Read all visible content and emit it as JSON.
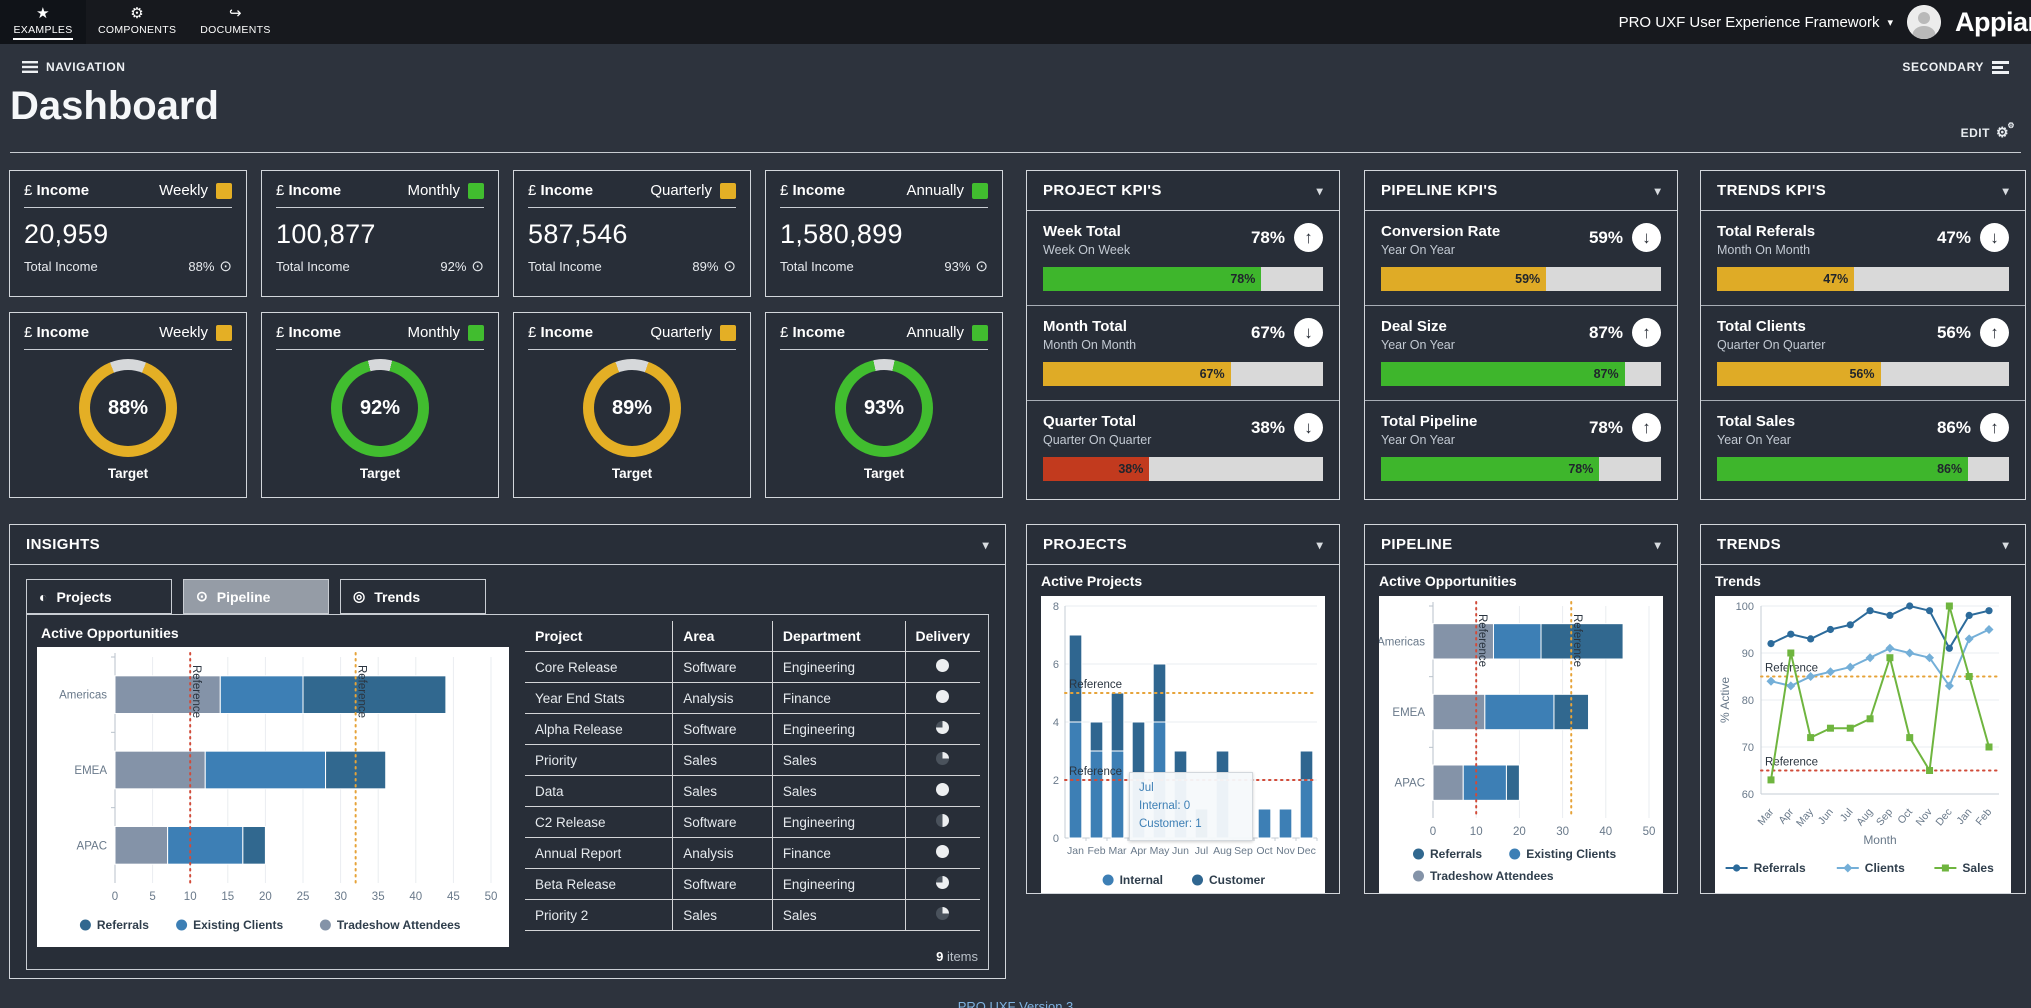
{
  "topbar": {
    "tabs": [
      {
        "label": "EXAMPLES",
        "glyph": "★",
        "icon": "star-icon",
        "active": true
      },
      {
        "label": "COMPONENTS",
        "glyph": "⚙",
        "icon": "gear-icon",
        "active": false
      },
      {
        "label": "DOCUMENTS",
        "glyph": "↪",
        "icon": "share-arrow-icon",
        "active": false
      }
    ],
    "app_menu": "PRO UXF User Experience Framework",
    "logo": "Appian"
  },
  "subheader": {
    "navigation_label": "NAVIGATION",
    "secondary_label": "SECONDARY"
  },
  "page": {
    "title": "Dashboard",
    "edit_label": "EDIT"
  },
  "income_cards": [
    {
      "currency": "£",
      "title": "Income",
      "period": "Weekly",
      "accent": "#E4AF25",
      "value": "20,959",
      "footer_label": "Total Income",
      "percent": "88%"
    },
    {
      "currency": "£",
      "title": "Income",
      "period": "Monthly",
      "accent": "#41BD2F",
      "value": "100,877",
      "footer_label": "Total Income",
      "percent": "92%"
    },
    {
      "currency": "£",
      "title": "Income",
      "period": "Quarterly",
      "accent": "#E4AF25",
      "value": "587,546",
      "footer_label": "Total Income",
      "percent": "89%"
    },
    {
      "currency": "£",
      "title": "Income",
      "period": "Annually",
      "accent": "#41BD2F",
      "value": "1,580,899",
      "footer_label": "Total Income",
      "percent": "93%"
    }
  ],
  "target_cards": [
    {
      "currency": "£",
      "title": "Income",
      "period": "Weekly",
      "accent": "#E4AF25",
      "percent": 88,
      "label": "Target"
    },
    {
      "currency": "£",
      "title": "Income",
      "period": "Monthly",
      "accent": "#41BD2F",
      "percent": 92,
      "label": "Target"
    },
    {
      "currency": "£",
      "title": "Income",
      "period": "Quarterly",
      "accent": "#E4AF25",
      "percent": 89,
      "label": "Target"
    },
    {
      "currency": "£",
      "title": "Income",
      "period": "Annually",
      "accent": "#41BD2F",
      "percent": 93,
      "label": "Target"
    }
  ],
  "kpi_panels": [
    {
      "title": "PROJECT KPI'S",
      "rows": [
        {
          "title": "Week Total",
          "subtitle": "Week On Week",
          "percent": 78,
          "direction": "up",
          "color": "#3EB62C"
        },
        {
          "title": "Month Total",
          "subtitle": "Month On Month",
          "percent": 67,
          "direction": "down",
          "color": "#DFAB26"
        },
        {
          "title": "Quarter Total",
          "subtitle": "Quarter On Quarter",
          "percent": 38,
          "direction": "down",
          "color": "#C23A1E"
        }
      ]
    },
    {
      "title": "PIPELINE KPI'S",
      "rows": [
        {
          "title": "Conversion Rate",
          "subtitle": "Year On Year",
          "percent": 59,
          "direction": "down",
          "color": "#DFAB26"
        },
        {
          "title": "Deal Size",
          "subtitle": "Year On Year",
          "percent": 87,
          "direction": "up",
          "color": "#3EB62C"
        },
        {
          "title": "Total Pipeline",
          "subtitle": "Year On Year",
          "percent": 78,
          "direction": "up",
          "color": "#3EB62C"
        }
      ]
    },
    {
      "title": "TRENDS KPI'S",
      "rows": [
        {
          "title": "Total Referals",
          "subtitle": "Month On Month",
          "percent": 47,
          "direction": "down",
          "color": "#DFAB26"
        },
        {
          "title": "Total Clients",
          "subtitle": "Quarter On Quarter",
          "percent": 56,
          "direction": "up",
          "color": "#DFAB26"
        },
        {
          "title": "Total Sales",
          "subtitle": "Year On Year",
          "percent": 86,
          "direction": "up",
          "color": "#3EB62C"
        }
      ]
    }
  ],
  "insights": {
    "title": "INSIGHTS",
    "tabs": [
      {
        "label": "Projects",
        "glyph": "◐",
        "icon": "half-circle-icon",
        "active": false
      },
      {
        "label": "Pipeline",
        "glyph": "⊙",
        "icon": "circled-dot-icon",
        "active": true
      },
      {
        "label": "Trends",
        "glyph": "◎",
        "icon": "bullseye-icon",
        "active": false
      }
    ],
    "chart_title": "Active Opportunities",
    "table": {
      "columns": [
        "Project",
        "Area",
        "Department",
        "Delivery"
      ],
      "rows": [
        {
          "project": "Core Release",
          "area": "Software",
          "department": "Engineering",
          "delivery": 1
        },
        {
          "project": "Year End Stats",
          "area": "Analysis",
          "department": "Finance",
          "delivery": 1
        },
        {
          "project": "Alpha Release",
          "area": "Software",
          "department": "Engineering",
          "delivery": 0.75
        },
        {
          "project": "Priority",
          "area": "Sales",
          "department": "Sales",
          "delivery": 0.25
        },
        {
          "project": "Data",
          "area": "Sales",
          "department": "Sales",
          "delivery": 1
        },
        {
          "project": "C2 Release",
          "area": "Software",
          "department": "Engineering",
          "delivery": 0.5
        },
        {
          "project": "Annual Report",
          "area": "Analysis",
          "department": "Finance",
          "delivery": 1
        },
        {
          "project": "Beta Release",
          "area": "Software",
          "department": "Engineering",
          "delivery": 0.75
        },
        {
          "project": "Priority 2",
          "area": "Sales",
          "department": "Sales",
          "delivery": 0.25
        }
      ],
      "count": "9",
      "items_label": "items"
    }
  },
  "projects_panel": {
    "title": "PROJECTS",
    "chart_title": "Active Projects",
    "tooltip": {
      "title": "Jul",
      "lines": [
        "Internal: 0",
        "Customer: 1"
      ]
    }
  },
  "pipeline_panel": {
    "title": "PIPELINE",
    "chart_title": "Active Opportunities"
  },
  "trends_panel": {
    "title": "TRENDS",
    "chart_title": "Trends"
  },
  "footer": {
    "link": "PRO UXF Version 3"
  },
  "chart_data": [
    {
      "id": "insights_opportunities",
      "type": "bar",
      "orientation": "horizontal",
      "stacked": true,
      "title": "Active Opportunities",
      "categories": [
        "Americas",
        "EMEA",
        "APAC"
      ],
      "series": [
        {
          "name": "Tradeshow Attendees",
          "color": "#8493A8",
          "values": [
            14,
            12,
            7
          ]
        },
        {
          "name": "Existing Clients",
          "color": "#3D7FB5",
          "values": [
            11,
            16,
            10
          ]
        },
        {
          "name": "Referrals",
          "color": "#31688F",
          "values": [
            19,
            8,
            3
          ]
        }
      ],
      "totals": [
        44,
        36,
        20
      ],
      "xlim": [
        0,
        50
      ],
      "xticks": [
        0,
        5,
        10,
        15,
        20,
        25,
        30,
        35,
        40,
        45,
        50
      ],
      "references": [
        {
          "value": 10,
          "color": "#D14B39",
          "label": "Reference"
        },
        {
          "value": 32,
          "color": "#E6A338",
          "label": "Reference"
        }
      ],
      "legend": {
        "rows": [
          [
            "Referrals",
            "Existing Clients",
            "Tradeshow Attendees"
          ]
        ]
      }
    },
    {
      "id": "pipeline_opportunities",
      "type": "bar",
      "orientation": "horizontal",
      "stacked": true,
      "title": "Active Opportunities",
      "categories": [
        "Americas",
        "EMEA",
        "APAC"
      ],
      "series": [
        {
          "name": "Tradeshow Attendees",
          "color": "#8493A8",
          "values": [
            14,
            12,
            7
          ]
        },
        {
          "name": "Existing Clients",
          "color": "#3D7FB5",
          "values": [
            11,
            16,
            10
          ]
        },
        {
          "name": "Referrals",
          "color": "#31688F",
          "values": [
            19,
            8,
            3
          ]
        }
      ],
      "totals": [
        44,
        36,
        20
      ],
      "xlim": [
        0,
        50
      ],
      "xticks": [
        0,
        10,
        20,
        30,
        40,
        50
      ],
      "references": [
        {
          "value": 10,
          "color": "#D14B39",
          "label": "Reference"
        },
        {
          "value": 32,
          "color": "#E6A338",
          "label": "Reference"
        }
      ],
      "legend": {
        "rows": [
          [
            "Referrals",
            "Existing Clients"
          ],
          [
            "Tradeshow Attendees"
          ]
        ],
        "x": 34
      }
    },
    {
      "id": "active_projects",
      "type": "bar",
      "orientation": "vertical",
      "stacked": true,
      "title": "Active Projects",
      "categories": [
        "Jan",
        "Feb",
        "Mar",
        "Apr",
        "May",
        "Jun",
        "Jul",
        "Aug",
        "Sep",
        "Oct",
        "Nov",
        "Dec"
      ],
      "series": [
        {
          "name": "Internal",
          "color": "#3D7FB5",
          "values": [
            4,
            3,
            3,
            2,
            4,
            2,
            0,
            2,
            0,
            1,
            1,
            2
          ]
        },
        {
          "name": "Customer",
          "color": "#2F6690",
          "values": [
            3,
            1,
            2,
            2,
            2,
            1,
            1,
            1,
            0,
            0,
            0,
            1
          ]
        }
      ],
      "totals": [
        7,
        4,
        5,
        4,
        6,
        3,
        1,
        3,
        0,
        1,
        1,
        3
      ],
      "ylim": [
        0,
        8
      ],
      "yticks": [
        0,
        2,
        4,
        6,
        8
      ],
      "references": [
        {
          "value": 5,
          "color": "#E6A338",
          "label": "Reference"
        },
        {
          "value": 2,
          "color": "#D14B39",
          "label": "Reference"
        }
      ],
      "legend": {
        "rows": [
          [
            "Internal",
            "Customer"
          ]
        ]
      }
    },
    {
      "id": "trends",
      "type": "line",
      "title": "Trends",
      "x": [
        "Mar",
        "Apr",
        "May",
        "Jun",
        "Jul",
        "Aug",
        "Sep",
        "Oct",
        "Nov",
        "Dec",
        "Jan",
        "Feb"
      ],
      "series": [
        {
          "name": "Referrals",
          "color": "#2C6B9B",
          "marker": "circle",
          "values": [
            92,
            94,
            93,
            95,
            96,
            99,
            98,
            100,
            99,
            91,
            98,
            99
          ]
        },
        {
          "name": "Clients",
          "color": "#74AFD8",
          "marker": "diamond",
          "values": [
            84,
            83,
            85,
            86,
            87,
            89,
            91,
            90,
            89,
            83,
            93,
            95
          ]
        },
        {
          "name": "Sales",
          "color": "#6FB53F",
          "marker": "square",
          "values": [
            63,
            90,
            72,
            74,
            74,
            76,
            89,
            72,
            65,
            100,
            85,
            70
          ]
        }
      ],
      "ylim": [
        60,
        100
      ],
      "yticks": [
        60,
        70,
        80,
        90,
        100
      ],
      "ylabel": "% Active",
      "xlabel": "Month",
      "references": [
        {
          "value": 85,
          "color": "#E6A338",
          "label": "Reference"
        },
        {
          "value": 65,
          "color": "#D14B39",
          "label": "Reference"
        }
      ],
      "legend": {
        "rows": [
          [
            "Referrals",
            "Clients",
            "Sales"
          ]
        ],
        "line": true
      }
    }
  ]
}
